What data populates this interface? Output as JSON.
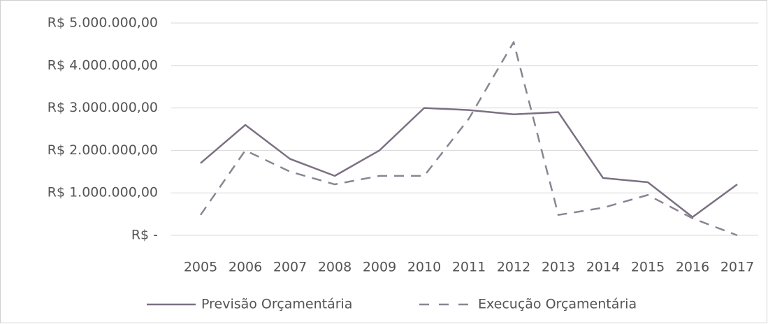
{
  "chart_data": {
    "type": "line",
    "categories": [
      "2005",
      "2006",
      "2007",
      "2008",
      "2009",
      "2010",
      "2011",
      "2012",
      "2013",
      "2014",
      "2015",
      "2016",
      "2017"
    ],
    "series": [
      {
        "name": "Previsão Orçamentária",
        "color": "#7b7082",
        "dash": false,
        "values": [
          1700000,
          2600000,
          1800000,
          1400000,
          2000000,
          3000000,
          2950000,
          2850000,
          2900000,
          1350000,
          1250000,
          430000,
          1200000
        ]
      },
      {
        "name": "Execução Orçamentária",
        "color": "#8a8592",
        "dash": true,
        "values": [
          480000,
          2000000,
          1500000,
          1200000,
          1400000,
          1400000,
          2750000,
          4550000,
          480000,
          650000,
          950000,
          400000,
          0
        ]
      }
    ],
    "ylim": [
      0,
      5000000
    ],
    "yticks": [
      {
        "value": 0,
        "label": "R$ -"
      },
      {
        "value": 1000000,
        "label": "R$ 1.000.000,00"
      },
      {
        "value": 2000000,
        "label": "R$ 2.000.000,00"
      },
      {
        "value": 3000000,
        "label": "R$ 3.000.000,00"
      },
      {
        "value": 4000000,
        "label": "R$ 4.000.000,00"
      },
      {
        "value": 5000000,
        "label": "R$ 5.000.000,00"
      }
    ],
    "grid": true,
    "legend": "bottom"
  }
}
